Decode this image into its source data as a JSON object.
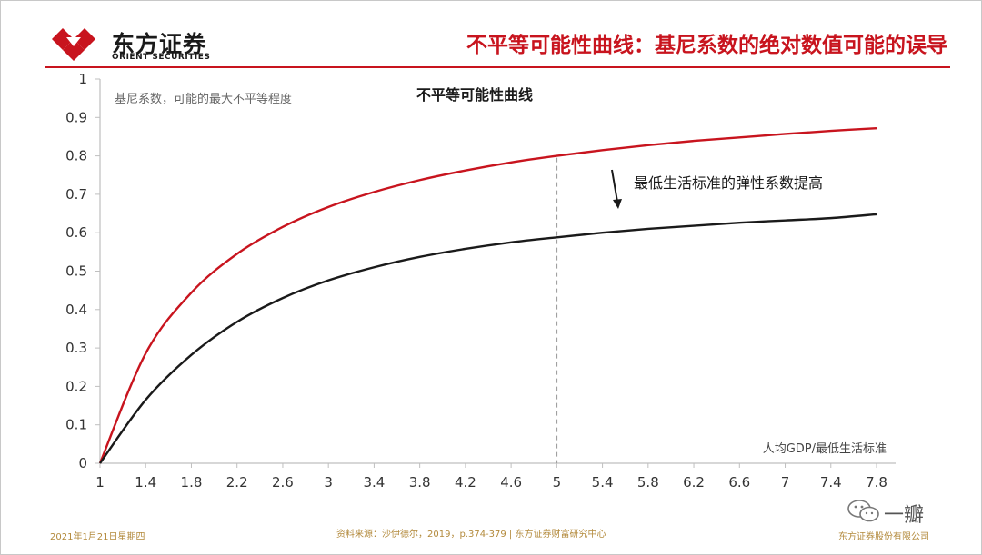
{
  "header": {
    "brand_cn": "东方证券",
    "brand_en": "ORIENT SECURITIES",
    "title": "不平等可能性曲线：基尼系数的绝对数值可能的误导",
    "accent_color": "#c8141e"
  },
  "chart_data": {
    "type": "line",
    "title": "不平等可能性曲线",
    "ylabel": "基尼系数，可能的最大不平等程度",
    "xlabel": "人均GDP/最低生活标准",
    "x_ticks": [
      "1",
      "1.4",
      "1.8",
      "2.2",
      "2.6",
      "3",
      "3.4",
      "3.8",
      "4.2",
      "4.6",
      "5",
      "5.4",
      "5.8",
      "6.2",
      "6.6",
      "7",
      "7.4",
      "7.8"
    ],
    "y_ticks": [
      "0",
      "0.1",
      "0.2",
      "0.3",
      "0.4",
      "0.5",
      "0.6",
      "0.7",
      "0.8",
      "0.9",
      "1"
    ],
    "xlim": [
      1,
      7.8
    ],
    "ylim": [
      0,
      1
    ],
    "grid": false,
    "reference_line_x": 5,
    "annotation": "最低生活标准的弹性系数提高",
    "series": [
      {
        "color": "#c8141e",
        "x": [
          1,
          1.4,
          1.8,
          2.2,
          2.6,
          3,
          3.4,
          3.8,
          4.2,
          4.6,
          5,
          5.4,
          5.8,
          6.2,
          6.6,
          7,
          7.4,
          7.8
        ],
        "y": [
          0,
          0.286,
          0.444,
          0.545,
          0.615,
          0.667,
          0.706,
          0.737,
          0.762,
          0.783,
          0.8,
          0.815,
          0.828,
          0.839,
          0.848,
          0.857,
          0.865,
          0.872
        ]
      },
      {
        "color": "#1a1a1a",
        "x": [
          1,
          1.4,
          1.8,
          2.2,
          2.6,
          3,
          3.4,
          3.8,
          4.2,
          4.6,
          5,
          5.4,
          5.8,
          6.2,
          6.6,
          7,
          7.4,
          7.8
        ],
        "y": [
          0,
          0.165,
          0.282,
          0.368,
          0.43,
          0.476,
          0.51,
          0.537,
          0.558,
          0.575,
          0.588,
          0.6,
          0.61,
          0.618,
          0.626,
          0.632,
          0.638,
          0.648
        ]
      }
    ]
  },
  "footer": {
    "date": "2021年1月21日星期四",
    "source": "资料来源：沙伊德尔，2019，p.374-379 | 东方证券财富研究中心",
    "company": "东方证券股份有限公司"
  },
  "watermark": {
    "text": "一瓣",
    "icon": "wechat-icon"
  }
}
